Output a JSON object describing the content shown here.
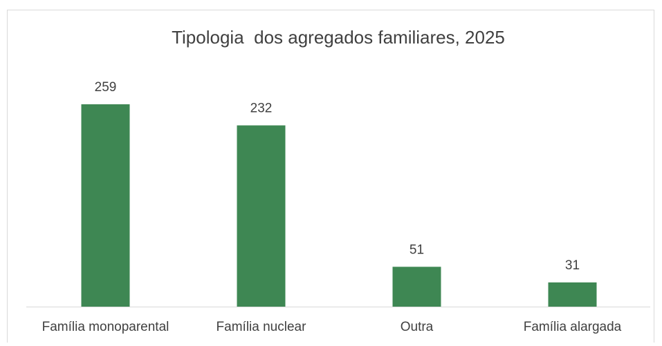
{
  "chart_data": {
    "type": "bar",
    "title": "Tipologia  dos agregados familiares, 2025",
    "categories": [
      "Família monoparental",
      "Família nuclear",
      "Outra",
      "Família alargada"
    ],
    "values": [
      259,
      232,
      51,
      31
    ],
    "color": "#3e8753"
  }
}
